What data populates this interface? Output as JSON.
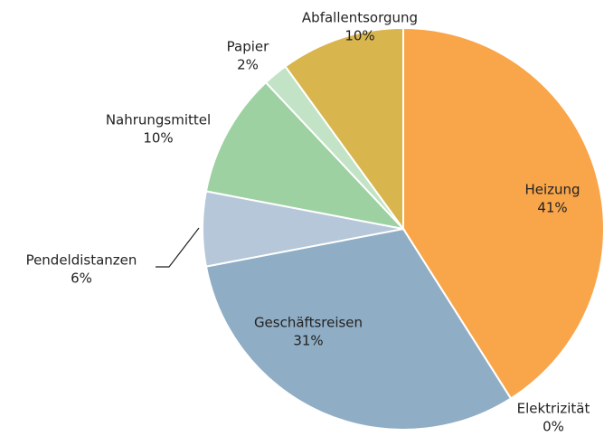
{
  "chart_data": {
    "type": "pie",
    "categories": [
      "Heizung",
      "Elektrizität",
      "Geschäftsreisen",
      "Pendeldistanzen",
      "Nahrungsmittel",
      "Papier",
      "Abfallentsorgung"
    ],
    "values": [
      41,
      0,
      31,
      6,
      10,
      2,
      10
    ],
    "value_labels": [
      "41%",
      "0%",
      "31%",
      "6%",
      "10%",
      "2%",
      "10%"
    ],
    "colors": [
      "#f9a54a",
      "#d0d0d0",
      "#8fadc4",
      "#b5c7d8",
      "#9dd1a2",
      "#c3e3c6",
      "#d9b54e"
    ]
  }
}
